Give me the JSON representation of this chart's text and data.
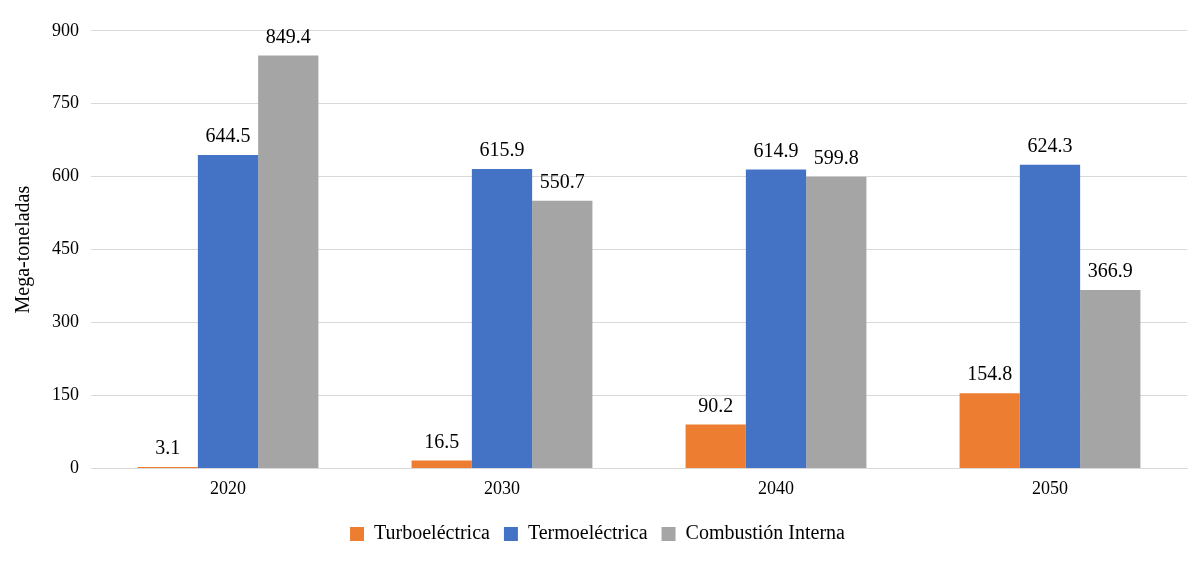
{
  "chart_data": {
    "type": "bar",
    "ylabel": "Mega-toneladas",
    "categories": [
      "2020",
      "2030",
      "2040",
      "2050"
    ],
    "series": [
      {
        "name": "Turboeléctrica",
        "color": "#ed7d31",
        "values": [
          3.1,
          16.5,
          90.2,
          154.8
        ]
      },
      {
        "name": "Termoeléctrica",
        "color": "#4472c4",
        "values": [
          644.5,
          615.9,
          614.9,
          624.3
        ]
      },
      {
        "name": "Combustión Interna",
        "color": "#a5a5a5",
        "values": [
          849.4,
          550.7,
          599.8,
          366.9
        ]
      }
    ],
    "ylim": [
      0,
      900
    ],
    "yticks": [
      0,
      150,
      300,
      450,
      600,
      750,
      900
    ],
    "grid": "y",
    "legend": "bottom",
    "data_labels": true
  }
}
